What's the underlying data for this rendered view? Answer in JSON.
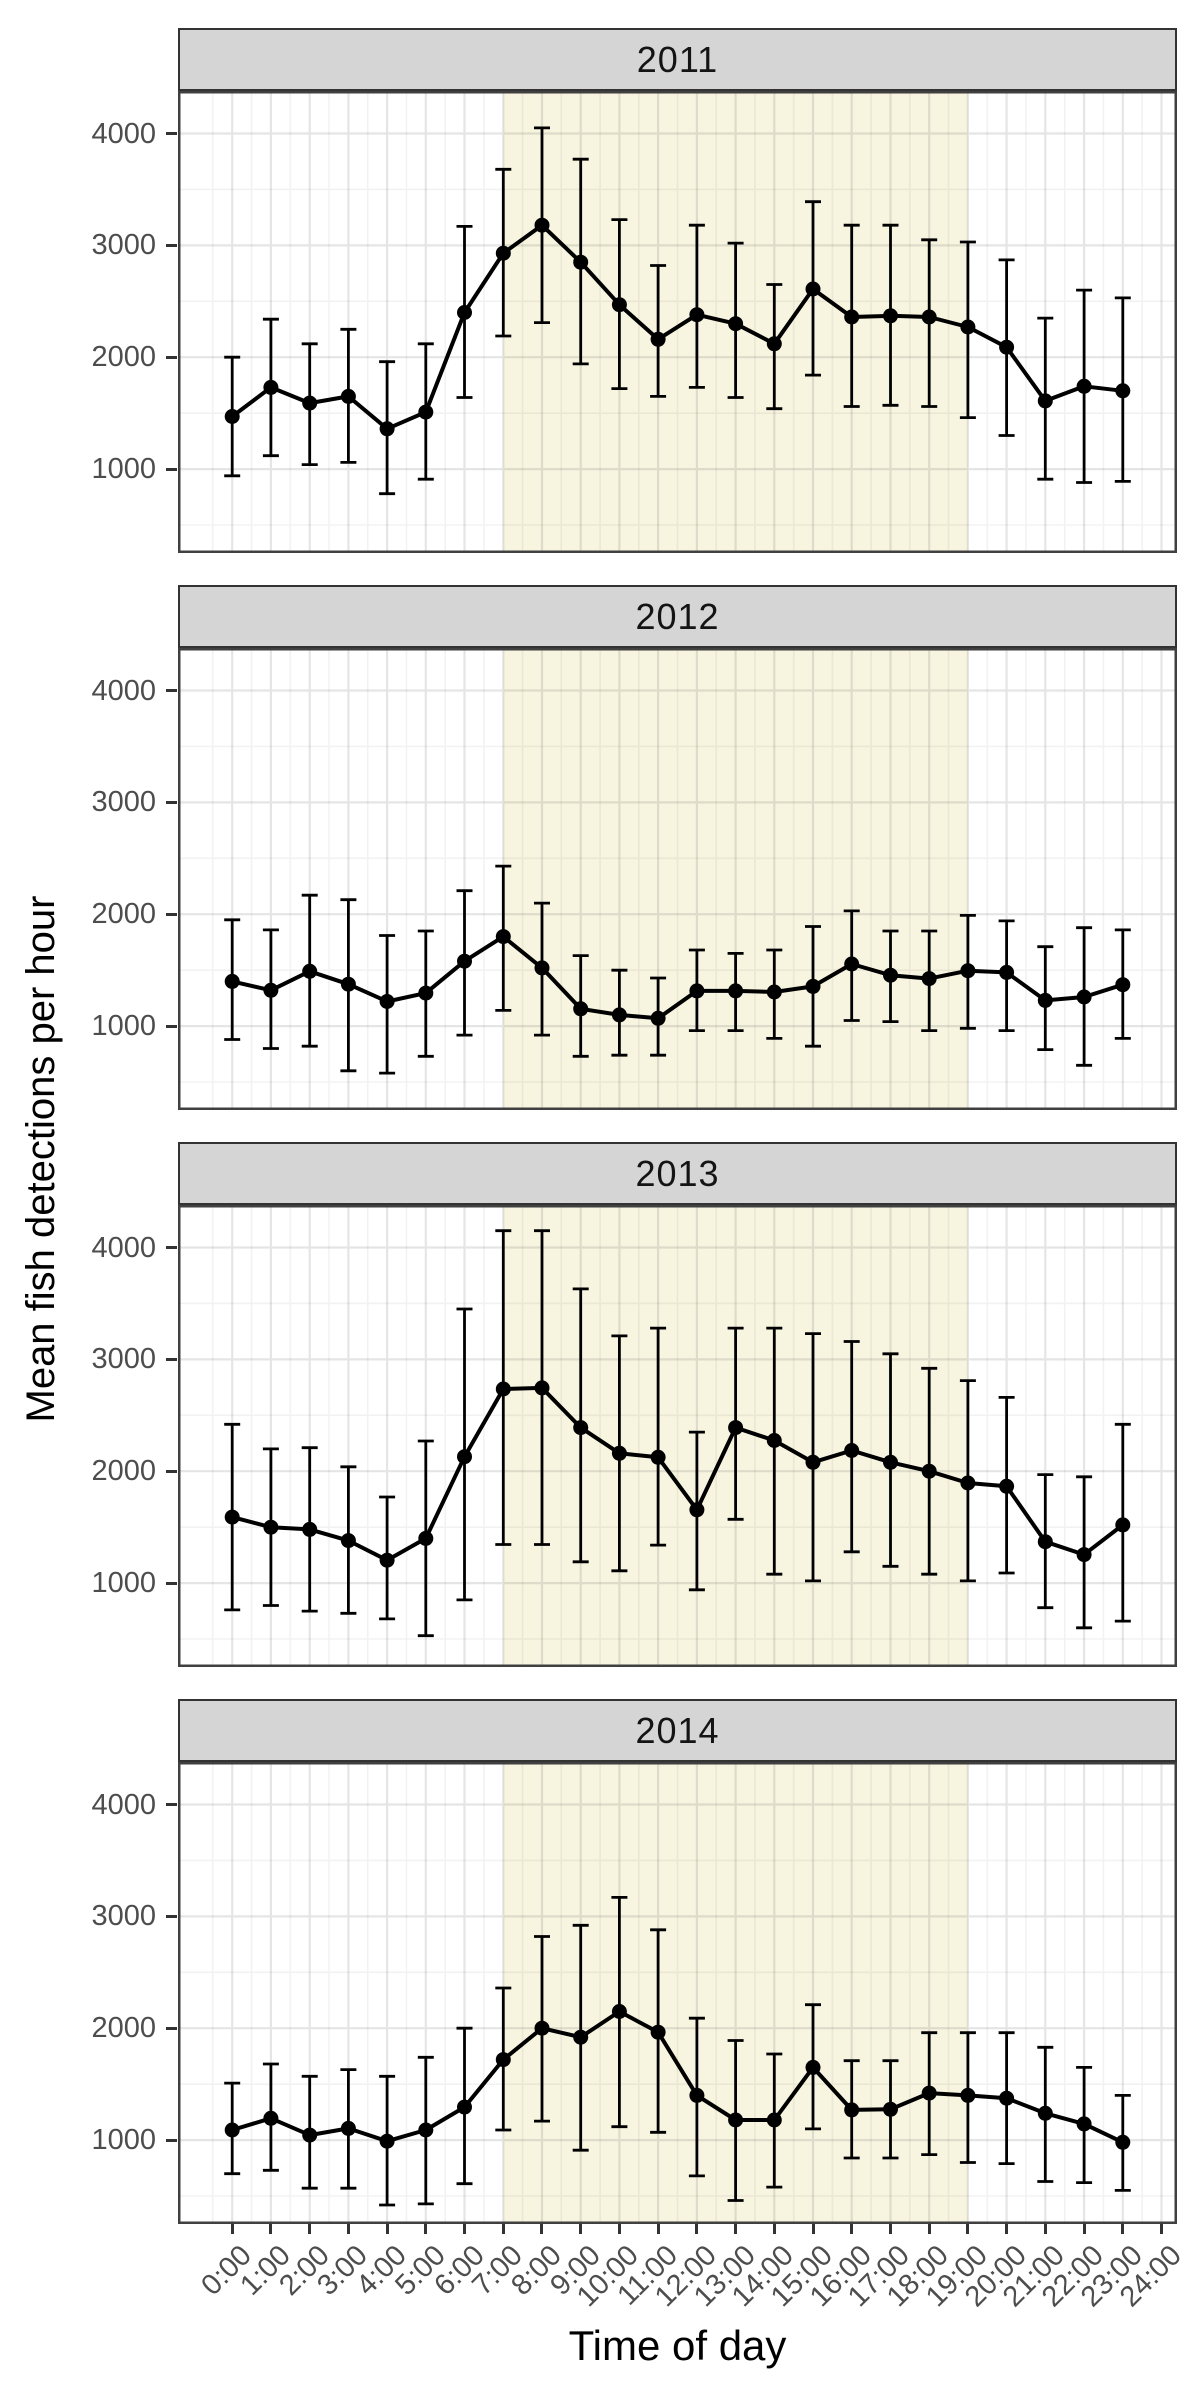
{
  "chart_data": {
    "type": "line",
    "title": "",
    "xlabel": "Time of day",
    "ylabel": "Mean fish detections per hour",
    "x_hours": [
      0,
      1,
      2,
      3,
      4,
      5,
      6,
      7,
      8,
      9,
      10,
      11,
      12,
      13,
      14,
      15,
      16,
      17,
      18,
      19,
      20,
      21,
      22,
      23
    ],
    "x_tick_labels": [
      "0:00",
      "1:00",
      "2:00",
      "3:00",
      "4:00",
      "5:00",
      "6:00",
      "7:00",
      "8:00",
      "9:00",
      "10:00",
      "11:00",
      "12:00",
      "13:00",
      "14:00",
      "15:00",
      "16:00",
      "17:00",
      "18:00",
      "19:00",
      "20:00",
      "21:00",
      "22:00",
      "23:00",
      "24:00"
    ],
    "y_ticks": [
      1000,
      2000,
      3000,
      4000
    ],
    "y_minor_ticks": [
      500,
      1500,
      2500,
      3500
    ],
    "xlim": [
      -1.4,
      24.4
    ],
    "ylim": [
      250,
      4380
    ],
    "grid": "on",
    "legend_position": "none",
    "shaded_region": {
      "from_hour": 7,
      "to_hour": 19
    },
    "error_bars": true,
    "facets": [
      {
        "label": "2011",
        "means": [
          1470,
          1730,
          1590,
          1650,
          1360,
          1510,
          2400,
          2930,
          3180,
          2850,
          2470,
          2160,
          2380,
          2300,
          2120,
          2610,
          2360,
          2370,
          2360,
          2270,
          2090,
          1610,
          1740,
          1700
        ],
        "lower": [
          940,
          1120,
          1040,
          1060,
          780,
          910,
          1640,
          2190,
          2310,
          1940,
          1720,
          1650,
          1730,
          1640,
          1540,
          1840,
          1560,
          1570,
          1560,
          1460,
          1300,
          910,
          880,
          890
        ],
        "upper": [
          2000,
          2340,
          2120,
          2250,
          1960,
          2120,
          3170,
          3680,
          4050,
          3770,
          3230,
          2820,
          3180,
          3020,
          2650,
          3390,
          3180,
          3180,
          3050,
          3030,
          2870,
          2350,
          2600,
          2530
        ]
      },
      {
        "label": "2012",
        "means": [
          1400,
          1320,
          1490,
          1375,
          1220,
          1295,
          1580,
          1800,
          1520,
          1155,
          1100,
          1070,
          1315,
          1315,
          1305,
          1355,
          1555,
          1455,
          1425,
          1495,
          1480,
          1230,
          1260,
          1370
        ],
        "lower": [
          880,
          800,
          820,
          600,
          580,
          730,
          920,
          1140,
          920,
          730,
          740,
          740,
          960,
          960,
          890,
          820,
          1050,
          1040,
          960,
          980,
          960,
          790,
          650,
          890
        ],
        "upper": [
          1950,
          1860,
          2170,
          2130,
          1810,
          1850,
          2210,
          2430,
          2100,
          1630,
          1500,
          1430,
          1680,
          1650,
          1680,
          1890,
          2030,
          1850,
          1850,
          1990,
          1940,
          1710,
          1880,
          1860
        ]
      },
      {
        "label": "2013",
        "means": [
          1590,
          1500,
          1480,
          1380,
          1205,
          1400,
          2130,
          2735,
          2745,
          2390,
          2160,
          2125,
          1655,
          2390,
          2275,
          2080,
          2185,
          2080,
          2000,
          1895,
          1865,
          1370,
          1255,
          1520
        ],
        "lower": [
          760,
          800,
          750,
          730,
          680,
          530,
          850,
          1345,
          1345,
          1190,
          1110,
          1340,
          940,
          1570,
          1080,
          1020,
          1280,
          1150,
          1080,
          1020,
          1090,
          780,
          600,
          660
        ],
        "upper": [
          2420,
          2200,
          2210,
          2040,
          1770,
          2270,
          3450,
          4150,
          4150,
          3630,
          3210,
          3280,
          2350,
          3280,
          3280,
          3230,
          3160,
          3050,
          2920,
          2810,
          2660,
          1970,
          1950,
          2420
        ]
      },
      {
        "label": "2014",
        "means": [
          1090,
          1195,
          1045,
          1105,
          990,
          1090,
          1295,
          1720,
          2000,
          1920,
          2150,
          1965,
          1400,
          1180,
          1180,
          1650,
          1270,
          1275,
          1420,
          1400,
          1375,
          1240,
          1145,
          980
        ],
        "lower": [
          700,
          730,
          570,
          570,
          420,
          430,
          610,
          1090,
          1170,
          910,
          1120,
          1070,
          680,
          460,
          580,
          1100,
          840,
          840,
          870,
          800,
          790,
          630,
          620,
          550
        ],
        "upper": [
          1510,
          1680,
          1570,
          1630,
          1570,
          1740,
          2000,
          2360,
          2820,
          2920,
          3170,
          2880,
          2090,
          1890,
          1770,
          2210,
          1710,
          1710,
          1960,
          1960,
          1960,
          1830,
          1650,
          1400
        ]
      }
    ]
  },
  "styles": {
    "background": "#ffffff",
    "shading_color": "#f7f4e0",
    "strip_background": "#d5d5d5",
    "strip_border": "#333333",
    "panel_border": "#404040",
    "grid_major": "rgba(0,0,0,0.10)",
    "grid_minor": "rgba(0,0,0,0.05)",
    "data_color": "#000000",
    "tick_color": "#333333",
    "tick_label_color": "#4d4d4d"
  }
}
